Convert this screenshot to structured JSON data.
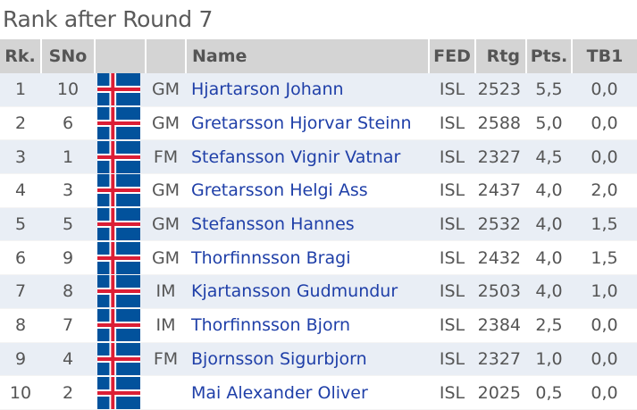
{
  "title": "Rank after Round 7",
  "headers": {
    "rk": "Rk.",
    "sno": "SNo",
    "name": "Name",
    "fed": "FED",
    "rtg": "Rtg",
    "pts": "Pts.",
    "tb1": "TB1"
  },
  "colors": {
    "flag_blue": "#02529C",
    "flag_white": "#FFFFFF",
    "flag_red": "#DC1E35",
    "name_link": "#1f3fa8",
    "header_bg": "#d4d4d4",
    "row_alt_bg": "#e9eef5"
  },
  "flag_icon": "iceland-flag-icon",
  "rows": [
    {
      "rk": "1",
      "sno": "10",
      "title": "GM",
      "name": "Hjartarson Johann",
      "fed": "ISL",
      "rtg": "2523",
      "pts": "5,5",
      "tb1": "0,0"
    },
    {
      "rk": "2",
      "sno": "6",
      "title": "GM",
      "name": "Gretarsson Hjorvar Steinn",
      "fed": "ISL",
      "rtg": "2588",
      "pts": "5,0",
      "tb1": "0,0"
    },
    {
      "rk": "3",
      "sno": "1",
      "title": "FM",
      "name": "Stefansson Vignir Vatnar",
      "fed": "ISL",
      "rtg": "2327",
      "pts": "4,5",
      "tb1": "0,0"
    },
    {
      "rk": "4",
      "sno": "3",
      "title": "GM",
      "name": "Gretarsson Helgi Ass",
      "fed": "ISL",
      "rtg": "2437",
      "pts": "4,0",
      "tb1": "2,0"
    },
    {
      "rk": "5",
      "sno": "5",
      "title": "GM",
      "name": "Stefansson Hannes",
      "fed": "ISL",
      "rtg": "2532",
      "pts": "4,0",
      "tb1": "1,5"
    },
    {
      "rk": "6",
      "sno": "9",
      "title": "GM",
      "name": "Thorfinnsson Bragi",
      "fed": "ISL",
      "rtg": "2432",
      "pts": "4,0",
      "tb1": "1,5"
    },
    {
      "rk": "7",
      "sno": "8",
      "title": "IM",
      "name": "Kjartansson Gudmundur",
      "fed": "ISL",
      "rtg": "2503",
      "pts": "4,0",
      "tb1": "1,0"
    },
    {
      "rk": "8",
      "sno": "7",
      "title": "IM",
      "name": "Thorfinnsson Bjorn",
      "fed": "ISL",
      "rtg": "2384",
      "pts": "2,5",
      "tb1": "0,0"
    },
    {
      "rk": "9",
      "sno": "4",
      "title": "FM",
      "name": "Bjornsson Sigurbjorn",
      "fed": "ISL",
      "rtg": "2327",
      "pts": "1,0",
      "tb1": "0,0"
    },
    {
      "rk": "10",
      "sno": "2",
      "title": "",
      "name": "Mai Alexander Oliver",
      "fed": "ISL",
      "rtg": "2025",
      "pts": "0,5",
      "tb1": "0,0"
    }
  ]
}
